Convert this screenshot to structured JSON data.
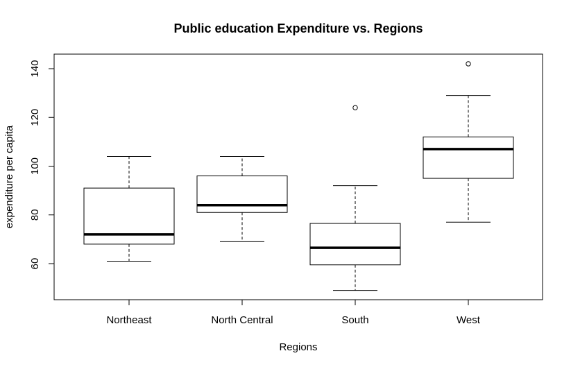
{
  "chart_data": {
    "type": "boxplot",
    "title": "Public education Expenditure vs. Regions",
    "xlabel": "Regions",
    "ylabel": "expenditure per capita",
    "yticks": [
      60,
      80,
      100,
      120,
      140
    ],
    "ylim": [
      45,
      145
    ],
    "grid": false,
    "legend": "none",
    "categories": [
      "Northeast",
      "North Central",
      "South",
      "West"
    ],
    "boxes": [
      {
        "min": 61,
        "q1": 68,
        "median": 72,
        "q3": 91,
        "max": 104,
        "outliers": []
      },
      {
        "min": 69,
        "q1": 81,
        "median": 84,
        "q3": 96,
        "max": 104,
        "outliers": []
      },
      {
        "min": 49,
        "q1": 59.5,
        "median": 66.5,
        "q3": 76.5,
        "max": 92,
        "outliers": [
          124
        ]
      },
      {
        "min": 77,
        "q1": 95,
        "median": 107,
        "q3": 112,
        "max": 129,
        "outliers": [
          142
        ]
      }
    ]
  }
}
